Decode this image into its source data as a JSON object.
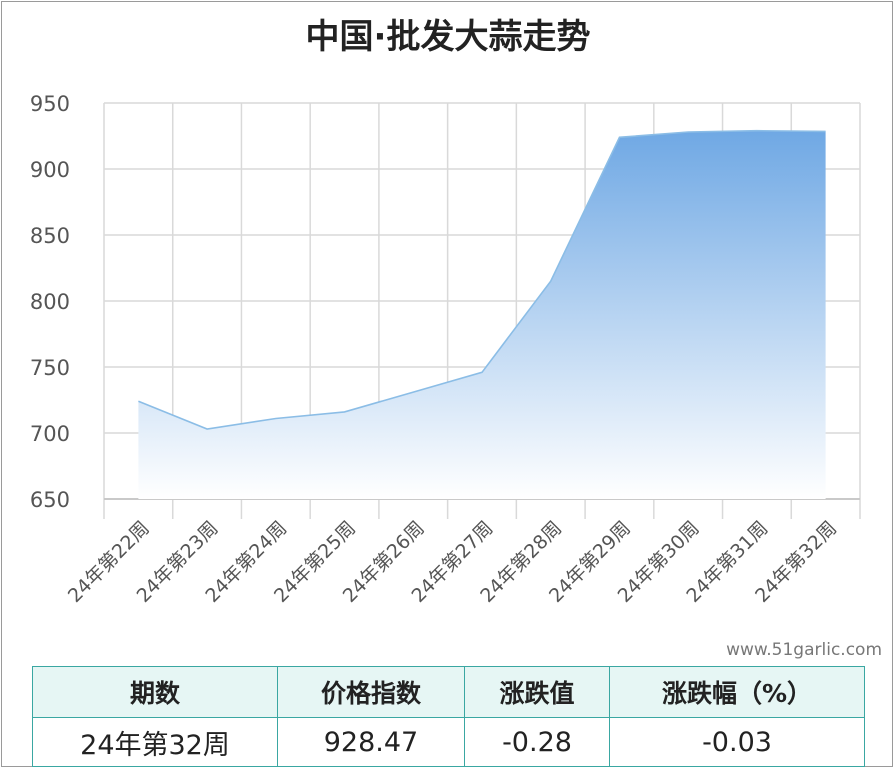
{
  "chart_data": {
    "type": "area",
    "title": "中国·批发大蒜走势",
    "categories": [
      "24年第22周",
      "24年第23周",
      "24年第24周",
      "24年第25周",
      "24年第26周",
      "24年第27周",
      "24年第28周",
      "24年第29周",
      "24年第30周",
      "24年第31周",
      "24年第32周"
    ],
    "series": [
      {
        "values": [
          724,
          703,
          711,
          716,
          731,
          746,
          815,
          924,
          928,
          929,
          928.47
        ]
      }
    ],
    "yticks": [
      650,
      700,
      750,
      800,
      850,
      900,
      950
    ],
    "ylim": [
      650,
      950
    ],
    "grid": true,
    "colors": {
      "line": "#8bbde6",
      "fill_top": "#6fa8e4",
      "fill_bottom": "#ffffff",
      "grid": "#d9d9d9"
    }
  },
  "watermark": "www.51garlic.com",
  "table": {
    "headers": [
      "期数",
      "价格指数",
      "涨跌值",
      "涨跌幅（%）"
    ],
    "row": [
      "24年第32周",
      "928.47",
      "-0.28",
      "-0.03"
    ]
  }
}
